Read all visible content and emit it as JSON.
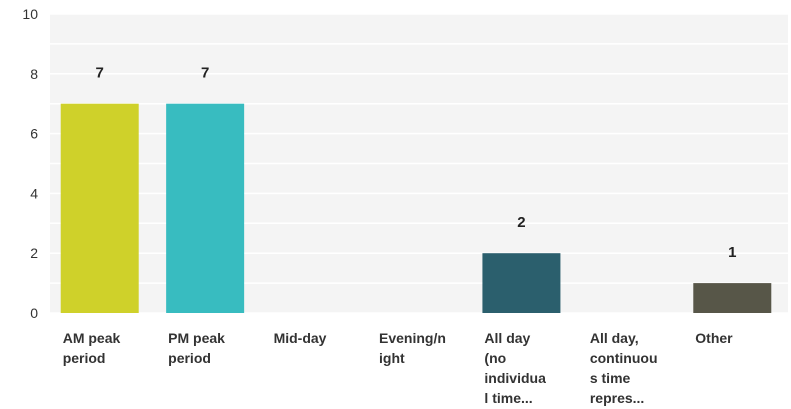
{
  "chart_data": {
    "type": "bar",
    "title": "",
    "xlabel": "",
    "ylabel": "",
    "ylim": [
      0,
      10
    ],
    "yticks": [
      0,
      2,
      4,
      6,
      8,
      10
    ],
    "grid": true,
    "categories": [
      [
        "AM peak",
        "period"
      ],
      [
        "PM peak",
        "period"
      ],
      [
        "Mid-day"
      ],
      [
        "Evening/n",
        "ight"
      ],
      [
        "All day",
        "(no",
        "individua",
        "l time..."
      ],
      [
        "All day,",
        "continuou",
        "s time",
        "repres..."
      ],
      [
        "Other"
      ]
    ],
    "values": [
      7,
      7,
      0,
      0,
      2,
      0,
      1
    ],
    "data_labels": [
      "7",
      "7",
      "",
      "",
      "2",
      "",
      "1"
    ],
    "colors": [
      "#cfd12a",
      "#38bcc0",
      "#cccccc",
      "#cccccc",
      "#2b5f6d",
      "#cccccc",
      "#575648"
    ],
    "background": "#f4f4f4",
    "grid_color": "#ffffff"
  }
}
